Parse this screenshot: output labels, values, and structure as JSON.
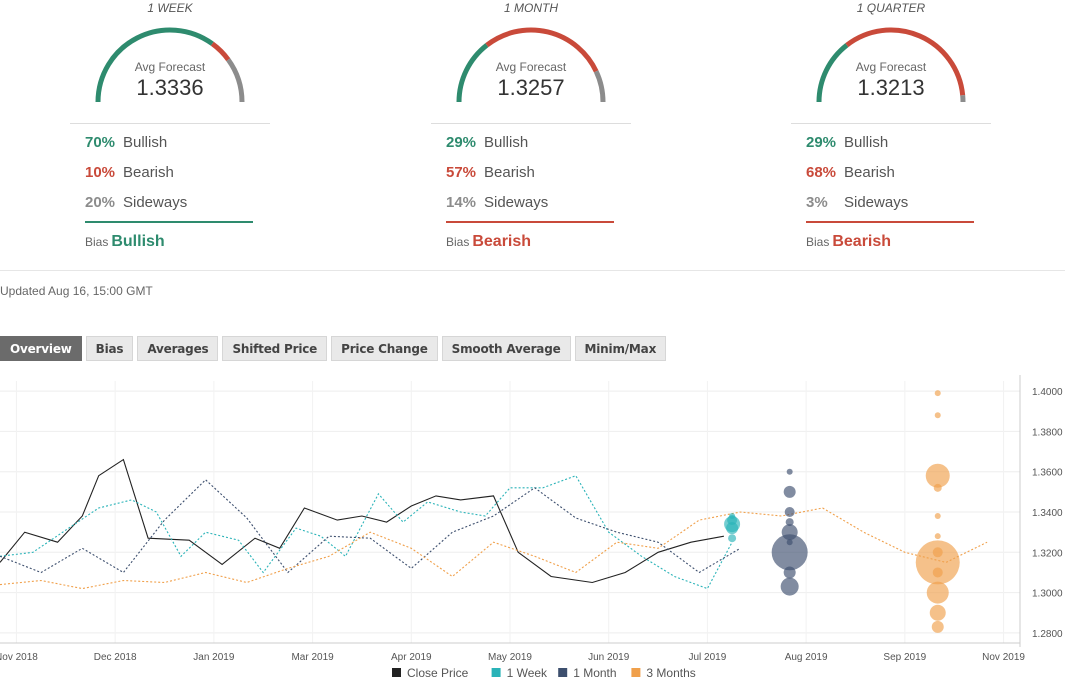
{
  "panels": [
    {
      "title": "1 WEEK",
      "avg_label": "Avg Forecast",
      "avg_value": "1.3336",
      "bullish": 70,
      "bearish": 10,
      "sideways": 20,
      "bullish_pct": "70%",
      "bearish_pct": "10%",
      "sideways_pct": "20%",
      "bullish_label": "Bullish",
      "bearish_label": "Bearish",
      "sideways_label": "Sideways",
      "bias_label": "Bias",
      "bias_value": "Bullish",
      "bias_color": "#2e8b6e"
    },
    {
      "title": "1 MONTH",
      "avg_label": "Avg Forecast",
      "avg_value": "1.3257",
      "bullish": 29,
      "bearish": 57,
      "sideways": 14,
      "bullish_pct": "29%",
      "bearish_pct": "57%",
      "sideways_pct": "14%",
      "bullish_label": "Bullish",
      "bearish_label": "Bearish",
      "sideways_label": "Sideways",
      "bias_label": "Bias",
      "bias_value": "Bearish",
      "bias_color": "#c94a3a"
    },
    {
      "title": "1 QUARTER",
      "avg_label": "Avg Forecast",
      "avg_value": "1.3213",
      "bullish": 29,
      "bearish": 68,
      "sideways": 3,
      "bullish_pct": "29%",
      "bearish_pct": "68%",
      "sideways_pct": "3%",
      "bullish_label": "Bullish",
      "bearish_label": "Bearish",
      "sideways_label": "Sideways",
      "bias_label": "Bias",
      "bias_value": "Bearish",
      "bias_color": "#c94a3a"
    }
  ],
  "colors": {
    "bullish": "#2e8b6e",
    "bearish": "#c94a3a",
    "sideways": "#8c8c8c"
  },
  "updated": "Updated Aug 16, 15:00 GMT",
  "tabs": [
    "Overview",
    "Bias",
    "Averages",
    "Shifted Price",
    "Price Change",
    "Smooth Average",
    "Minim/Max"
  ],
  "active_tab": "Overview",
  "chart_data": {
    "type": "line",
    "x_ticks": [
      "Nov 2018",
      "Dec 2018",
      "Jan 2019",
      "Mar 2019",
      "Apr 2019",
      "May 2019",
      "Jun 2019",
      "Jul 2019",
      "Aug 2019",
      "Sep 2019",
      "Nov 2019"
    ],
    "y_ticks": [
      "1.2800",
      "1.3000",
      "1.3200",
      "1.3400",
      "1.3600",
      "1.3800",
      "1.4000"
    ],
    "ylim": [
      1.275,
      1.405
    ],
    "series": [
      {
        "name": "Close Price",
        "color": "#222222",
        "style": "solid",
        "x": [
          0,
          0.3,
          0.7,
          1.0,
          1.2,
          1.5,
          1.8,
          2.3,
          2.7,
          3.1,
          3.4,
          3.7,
          4.1,
          4.4,
          4.7,
          5.0,
          5.3,
          5.6,
          6.0,
          6.3,
          6.7,
          7.2,
          7.6,
          8.0,
          8.4,
          8.8
        ],
        "y": [
          1.315,
          1.33,
          1.325,
          1.338,
          1.358,
          1.366,
          1.327,
          1.326,
          1.314,
          1.327,
          1.322,
          1.342,
          1.336,
          1.338,
          1.335,
          1.343,
          1.348,
          1.346,
          1.348,
          1.32,
          1.308,
          1.305,
          1.31,
          1.32,
          1.325,
          1.328
        ]
      },
      {
        "name": "1 Week",
        "color": "#2ab3b8",
        "style": "dotted",
        "x": [
          0,
          0.4,
          0.8,
          1.2,
          1.6,
          1.9,
          2.2,
          2.5,
          2.9,
          3.2,
          3.6,
          3.9,
          4.2,
          4.6,
          4.9,
          5.2,
          5.6,
          5.9,
          6.2,
          6.6,
          7.0,
          7.4,
          7.8,
          8.2,
          8.6,
          8.9
        ],
        "y": [
          1.318,
          1.32,
          1.331,
          1.342,
          1.346,
          1.34,
          1.318,
          1.33,
          1.326,
          1.31,
          1.332,
          1.328,
          1.318,
          1.349,
          1.335,
          1.345,
          1.34,
          1.338,
          1.352,
          1.352,
          1.358,
          1.33,
          1.318,
          1.308,
          1.302,
          1.325
        ]
      },
      {
        "name": "1 Month",
        "color": "#3d4f6e",
        "style": "dotted",
        "x": [
          0,
          0.5,
          1.0,
          1.5,
          2.0,
          2.5,
          3.0,
          3.5,
          4.0,
          4.5,
          5.0,
          5.5,
          6.0,
          6.5,
          7.0,
          7.5,
          8.0,
          8.5,
          9.0
        ],
        "y": [
          1.318,
          1.31,
          1.322,
          1.31,
          1.336,
          1.356,
          1.337,
          1.31,
          1.328,
          1.327,
          1.312,
          1.33,
          1.338,
          1.352,
          1.337,
          1.33,
          1.325,
          1.31,
          1.322
        ]
      },
      {
        "name": "3 Months",
        "color": "#f0a04b",
        "style": "dotted",
        "x": [
          0,
          0.5,
          1.0,
          1.5,
          2.0,
          2.5,
          3.0,
          3.5,
          4.0,
          4.5,
          5.0,
          5.5,
          6.0,
          6.5,
          7.0,
          7.5,
          8.0,
          8.5,
          9.0,
          9.5,
          10.0,
          10.5,
          11.0,
          11.5,
          12.0
        ],
        "y": [
          1.304,
          1.306,
          1.302,
          1.306,
          1.305,
          1.31,
          1.305,
          1.312,
          1.318,
          1.33,
          1.322,
          1.308,
          1.325,
          1.318,
          1.31,
          1.325,
          1.322,
          1.336,
          1.34,
          1.338,
          1.342,
          1.33,
          1.32,
          1.315,
          1.325
        ]
      }
    ],
    "bubbles": [
      {
        "series": "1 Week",
        "x": 8.9,
        "y": [
          1.334,
          1.336,
          1.338,
          1.332,
          1.327
        ],
        "r": [
          8,
          5,
          3,
          6,
          4
        ]
      },
      {
        "series": "1 Month",
        "x": 9.6,
        "y": [
          1.36,
          1.35,
          1.34,
          1.335,
          1.33,
          1.325,
          1.32,
          1.31,
          1.303
        ],
        "r": [
          3,
          6,
          5,
          4,
          8,
          3,
          18,
          6,
          9
        ]
      },
      {
        "series": "3 Months",
        "x": 11.4,
        "y": [
          1.399,
          1.388,
          1.358,
          1.352,
          1.338,
          1.328,
          1.32,
          1.315,
          1.31,
          1.3,
          1.29,
          1.283
        ],
        "r": [
          3,
          3,
          12,
          4,
          3,
          3,
          5,
          22,
          5,
          11,
          8,
          6
        ]
      }
    ],
    "legend": [
      "Close Price",
      "1 Week",
      "1 Month",
      "3 Months"
    ],
    "grid": true,
    "legend_position": "bottom-center"
  }
}
